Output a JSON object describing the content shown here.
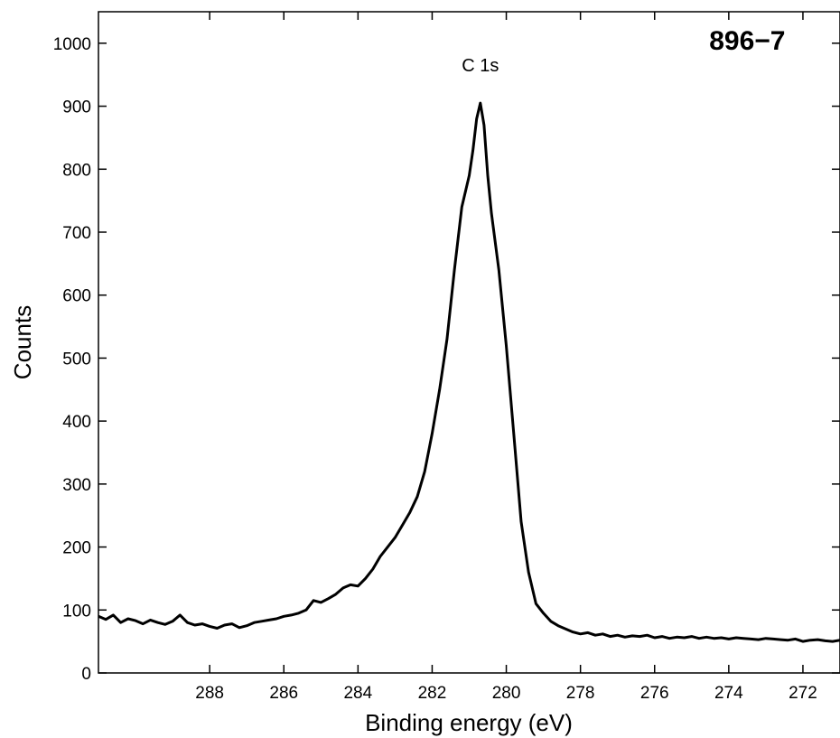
{
  "chart_data": {
    "type": "line",
    "xlabel": "Binding energy (eV)",
    "ylabel": "Counts",
    "x_reversed": true,
    "xlim": [
      291,
      271
    ],
    "ylim": [
      0,
      1050
    ],
    "xticks": [
      288,
      286,
      284,
      282,
      280,
      278,
      276,
      274,
      272
    ],
    "xtick_labels": [
      "288",
      "286",
      "284",
      "282",
      "280",
      "278",
      "276",
      "274",
      "272"
    ],
    "yticks": [
      0,
      100,
      200,
      300,
      400,
      500,
      600,
      700,
      800,
      900,
      1000
    ],
    "ytick_labels": [
      "0",
      "100",
      "200",
      "300",
      "400",
      "500",
      "600",
      "700",
      "800",
      "900",
      "1000"
    ],
    "grid": false,
    "line_color": "#000000",
    "annotations": [
      {
        "text": "C 1s",
        "x": 280.7,
        "y": 955
      },
      {
        "text": "896−7",
        "x": 273.5,
        "y": 990
      }
    ],
    "series": [
      {
        "x": [
          291.0,
          290.8,
          290.6,
          290.4,
          290.2,
          290.0,
          289.8,
          289.6,
          289.4,
          289.2,
          289.0,
          288.8,
          288.6,
          288.4,
          288.2,
          288.0,
          287.8,
          287.6,
          287.4,
          287.2,
          287.0,
          286.8,
          286.6,
          286.4,
          286.2,
          286.0,
          285.8,
          285.6,
          285.4,
          285.2,
          285.0,
          284.8,
          284.6,
          284.4,
          284.2,
          284.0,
          283.8,
          283.6,
          283.4,
          283.2,
          283.0,
          282.8,
          282.6,
          282.4,
          282.2,
          282.0,
          281.8,
          281.6,
          281.4,
          281.2,
          281.0,
          280.9,
          280.8,
          280.7,
          280.6,
          280.5,
          280.4,
          280.2,
          280.0,
          279.8,
          279.6,
          279.4,
          279.2,
          279.0,
          278.8,
          278.6,
          278.4,
          278.2,
          278.0,
          277.8,
          277.6,
          277.4,
          277.2,
          277.0,
          276.8,
          276.6,
          276.4,
          276.2,
          276.0,
          275.8,
          275.6,
          275.4,
          275.2,
          275.0,
          274.8,
          274.6,
          274.4,
          274.2,
          274.0,
          273.8,
          273.6,
          273.4,
          273.2,
          273.0,
          272.8,
          272.6,
          272.4,
          272.2,
          272.0,
          271.8,
          271.6,
          271.4,
          271.2,
          271.0
        ],
        "y": [
          90,
          85,
          92,
          80,
          86,
          83,
          78,
          84,
          80,
          77,
          82,
          92,
          80,
          76,
          78,
          74,
          71,
          76,
          78,
          72,
          75,
          80,
          82,
          84,
          86,
          90,
          92,
          95,
          100,
          115,
          112,
          118,
          125,
          135,
          140,
          138,
          150,
          165,
          185,
          200,
          215,
          235,
          255,
          280,
          320,
          380,
          450,
          530,
          640,
          740,
          790,
          830,
          880,
          905,
          870,
          790,
          730,
          640,
          520,
          380,
          240,
          160,
          110,
          95,
          82,
          75,
          70,
          65,
          62,
          64,
          60,
          62,
          58,
          60,
          57,
          59,
          58,
          60,
          56,
          58,
          55,
          57,
          56,
          58,
          55,
          57,
          55,
          56,
          54,
          56,
          55,
          54,
          53,
          55,
          54,
          53,
          52,
          54,
          50,
          52,
          53,
          51,
          50,
          52
        ]
      }
    ]
  }
}
